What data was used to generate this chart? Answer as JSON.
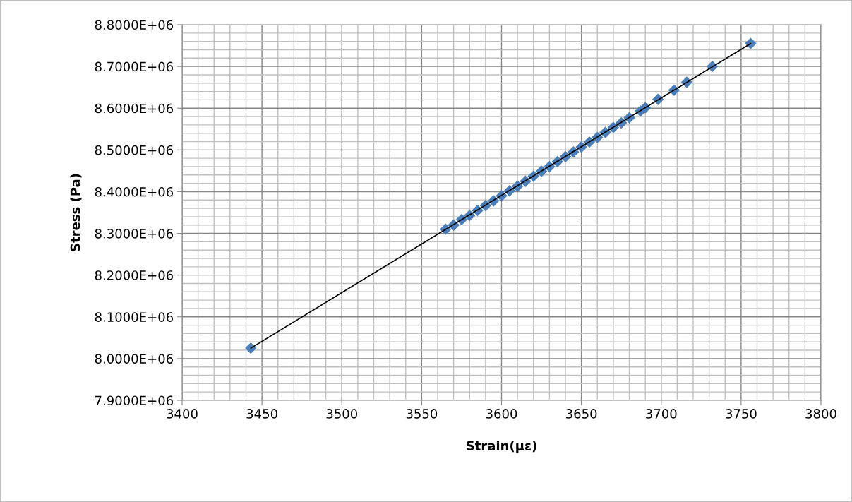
{
  "chart_data": {
    "type": "scatter",
    "xlabel": "Strain(με)",
    "ylabel": "Stress (Pa)",
    "xlim": [
      3400,
      3800
    ],
    "xticks": [
      3400,
      3450,
      3500,
      3550,
      3600,
      3650,
      3700,
      3750,
      3800
    ],
    "ylim": [
      7900000,
      8800000
    ],
    "yticks": [
      {
        "value": 7900000,
        "label": "7.9000E+06"
      },
      {
        "value": 8000000,
        "label": "8.0000E+06"
      },
      {
        "value": 8100000,
        "label": "8.1000E+06"
      },
      {
        "value": 8200000,
        "label": "8.2000E+06"
      },
      {
        "value": 8300000,
        "label": "8.3000E+06"
      },
      {
        "value": 8400000,
        "label": "8.4000E+06"
      },
      {
        "value": 8500000,
        "label": "8.5000E+06"
      },
      {
        "value": 8600000,
        "label": "8.6000E+06"
      },
      {
        "value": 8700000,
        "label": "8.7000E+06"
      },
      {
        "value": 8800000,
        "label": "8.8000E+06"
      }
    ],
    "grid": true,
    "marker": "diamond",
    "series": [
      {
        "color": "#4a7ebb",
        "x": [
          3443,
          3565,
          3570,
          3575,
          3580,
          3585,
          3590,
          3595,
          3600,
          3605,
          3610,
          3615,
          3620,
          3625,
          3630,
          3635,
          3640,
          3645,
          3650,
          3655,
          3660,
          3665,
          3670,
          3675,
          3680,
          3687,
          3690,
          3698,
          3708,
          3716,
          3732,
          3756
        ],
        "values": [
          8025000,
          8310000,
          8320000,
          8333000,
          8343000,
          8355000,
          8367000,
          8378000,
          8390000,
          8402000,
          8413000,
          8425000,
          8437000,
          8449000,
          8460000,
          8472000,
          8484000,
          8495000,
          8507000,
          8519000,
          8530000,
          8542000,
          8554000,
          8565000,
          8577000,
          8593000,
          8601000,
          8621000,
          8643000,
          8662000,
          8700000,
          8755000
        ]
      },
      {
        "type": "line",
        "color": "#000000",
        "marker": "none",
        "x": [
          3443,
          3756
        ],
        "values": [
          8025000,
          8755000
        ]
      }
    ]
  }
}
